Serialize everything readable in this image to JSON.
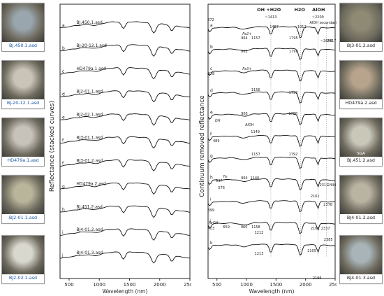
{
  "thumbnails_left": [
    {
      "label": "BJ.450.1.asd",
      "tone": "#9aa6ad"
    },
    {
      "label": "BJ-20-12.1.asd",
      "tone": "#c9c3b8"
    },
    {
      "label": "HD479a.1.asd",
      "tone": "#c7c3bb"
    },
    {
      "label": "BJ2-01.1.asd",
      "tone": "#b8b59b"
    },
    {
      "label": "BJ2-02.1.asd",
      "tone": "#d9d8cf"
    }
  ],
  "thumbnails_right": [
    {
      "label": "BJ3-01.2.asd",
      "tone": "#8e8a74"
    },
    {
      "label": "HD479a.2.asd",
      "tone": "#b8a48c"
    },
    {
      "label": "BJ.451.2.asd",
      "tone": "#c8c7b8"
    },
    {
      "label": "BJ4-01.2.asd",
      "tone": "#b9b3a2"
    },
    {
      "label": "BJ4-01.3.asd",
      "tone": "#a8b4b8"
    }
  ],
  "thumb_extra_text": {
    "sga": "SGA"
  },
  "chart_data": [
    {
      "type": "line",
      "ylabel": "Reflectance (stacked curves)",
      "xlabel": "Wavelength (nm)",
      "xlim": [
        350,
        2500
      ],
      "xticks": [
        500,
        1000,
        1500,
        2000,
        2500
      ],
      "series": [
        {
          "letter": "a",
          "name": "BJ.450.1.asd"
        },
        {
          "letter": "b",
          "name": "BJ-20-12.1.asd"
        },
        {
          "letter": "c",
          "name": "HD479a.1.asd"
        },
        {
          "letter": "d",
          "name": "BJ2-01.1.asd"
        },
        {
          "letter": "e",
          "name": "BJ2-02.1.asd"
        },
        {
          "letter": "f",
          "name": "BJ3-01.1.asd"
        },
        {
          "letter": "f",
          "name": "BJ3-01.2.asd"
        },
        {
          "letter": "g",
          "name": "HD479a.2.asd"
        },
        {
          "letter": "h",
          "name": "BJ.451.2.asd"
        },
        {
          "letter": "i",
          "name": "BJ4-01.2.asd"
        },
        {
          "letter": "j",
          "name": "BJ4-01.3.asd"
        }
      ]
    },
    {
      "type": "line",
      "ylabel": "Continuum removed reflectance",
      "xlabel": "Wavelength (nm)",
      "xlim": [
        350,
        2500
      ],
      "xticks": [
        500,
        1000,
        1500,
        2000,
        2500
      ],
      "series_letters": [
        "a",
        "b",
        "c",
        "d",
        "e",
        "f",
        "g",
        "h",
        "i",
        "j",
        "k"
      ],
      "header_labels": [
        "OH +H2O",
        "H2O",
        "AlOH",
        "AlOH secondaries"
      ],
      "annotations": [
        "~372",
        "~1413",
        "~1912",
        "~2209",
        "~2350",
        "~2417",
        "~378",
        "964",
        "1157",
        "1795",
        "962",
        "1796",
        "1156",
        "1792",
        "965",
        "1788",
        "489",
        "1149",
        "1157",
        "1792",
        "964",
        "1140",
        "537",
        "576",
        "399",
        "2161",
        "2311",
        "2444",
        "2378",
        "403",
        "659",
        "960",
        "1158",
        "1212",
        "2161",
        "2337",
        "1213",
        "2105",
        "2196",
        "2385",
        "1467"
      ],
      "species_labels": [
        "Fe2+",
        "Fe3+",
        "OH",
        "AlOH",
        "Fe",
        "FeOH"
      ]
    }
  ]
}
